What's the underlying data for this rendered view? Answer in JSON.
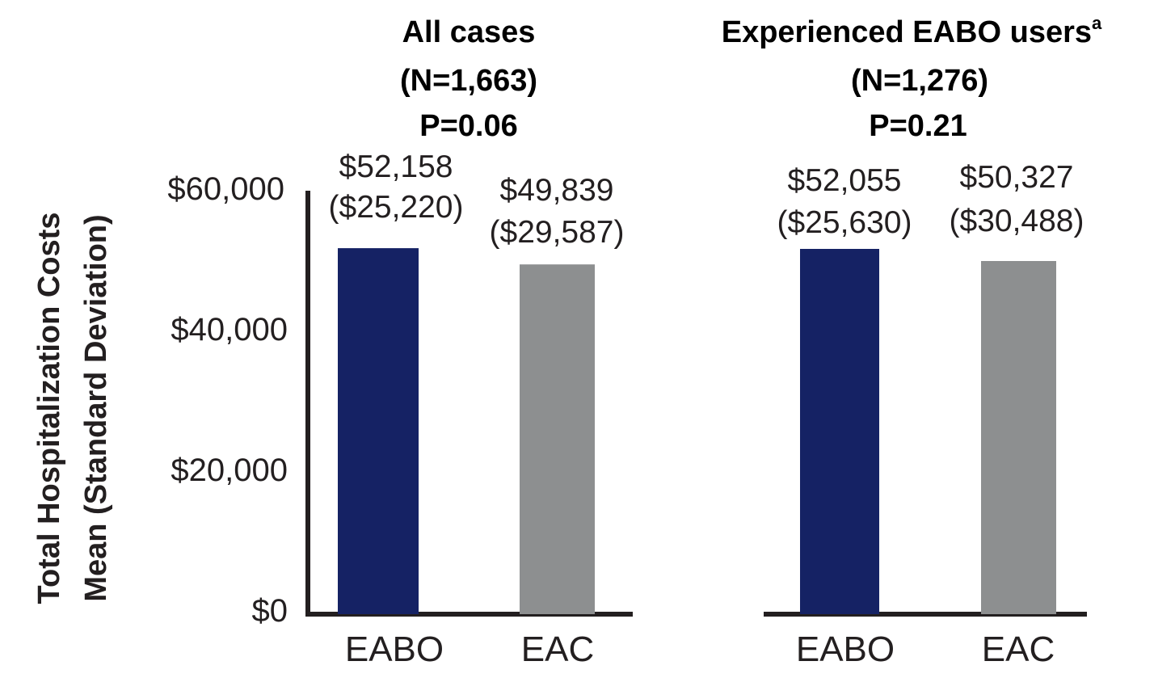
{
  "chart_data": {
    "type": "bar",
    "ylabel": [
      "Total Hospitalization Costs",
      "Mean (Standard Deviation)"
    ],
    "ylim": [
      0,
      60000
    ],
    "yticks": [
      "$0",
      "$20,000",
      "$40,000",
      "$60,000"
    ],
    "ytick_values": [
      0,
      20000,
      40000,
      60000
    ],
    "colors": {
      "EABO": "#152264",
      "EAC": "#8d8f90",
      "axis": "#231f20"
    },
    "panels": [
      {
        "title_lines": [
          "All cases",
          "(N=1,663)",
          "P=0.06"
        ],
        "categories": [
          "EABO",
          "EAC"
        ],
        "values": [
          52158,
          49839
        ],
        "sd": [
          25220,
          29587
        ],
        "labels": [
          [
            "$52,158",
            "($25,220)"
          ],
          [
            "$49,839",
            "($29,587)"
          ]
        ]
      },
      {
        "title_lines": [
          "Experienced EABO users",
          "(N=1,276)",
          "P=0.21"
        ],
        "title_superscript": "a",
        "categories": [
          "EABO",
          "EAC"
        ],
        "values": [
          52055,
          50327
        ],
        "sd": [
          25630,
          30488
        ],
        "labels": [
          [
            "$52,055",
            "($25,630)"
          ],
          [
            "$50,327",
            "($30,488)"
          ]
        ]
      }
    ]
  }
}
